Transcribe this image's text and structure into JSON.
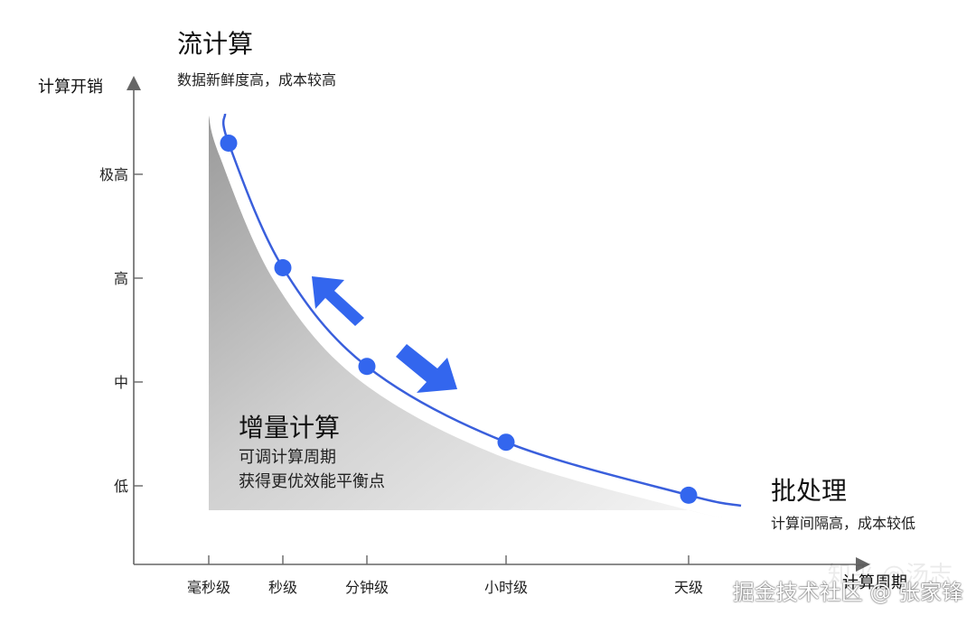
{
  "chart_data": {
    "type": "line",
    "ylabel": "计算开销",
    "xlabel": "计算周期",
    "x_categories": [
      "毫秒级",
      "秒级",
      "分钟级",
      "小时级",
      "天级"
    ],
    "y_categories": [
      "低",
      "中",
      "高",
      "极高"
    ],
    "points": [
      {
        "x": "毫秒级",
        "y": 3.3
      },
      {
        "x": "秒级",
        "y": 2.1
      },
      {
        "x": "分钟级",
        "y": 1.15
      },
      {
        "x": "小时级",
        "y": 0.42
      },
      {
        "x": "天级",
        "y": -0.09
      }
    ],
    "grid": false,
    "colors": {
      "curve": "#3a5fdc",
      "points": "#3366ee",
      "arrows": "#3366ee",
      "shade": "#c4c4c4",
      "axis": "#555555"
    },
    "annotations": {
      "stream": {
        "title": "流计算",
        "subtitle": "数据新鲜度高，成本较高"
      },
      "batch": {
        "title": "批处理",
        "subtitle": "计算间隔高，成本较低"
      },
      "incremental": {
        "title": "增量计算",
        "line1": "可调计算周期",
        "line2": "获得更优效能平衡点"
      }
    }
  },
  "watermark": {
    "text": "掘金技术社区 @ 张家锋",
    "faint": "知乎 @汤志"
  }
}
